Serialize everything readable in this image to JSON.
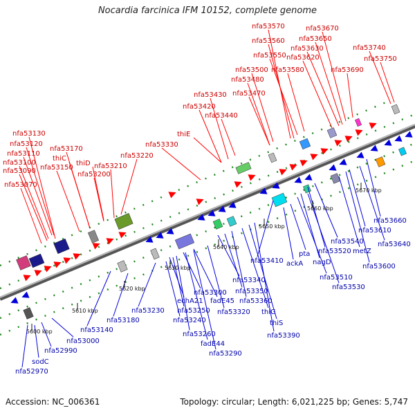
{
  "title": "Nocardia farcinica IFM 10152, complete genome",
  "footer": {
    "accession": "Accession: NC_006361",
    "stats": "Topology: circular; Length: 6,021,225 bp; Genes: 5,747"
  },
  "colors": {
    "forward_strand": "#ff0000",
    "reverse_strand": "#0000dd",
    "backbone": "#888888",
    "tick_dot": "#228b22"
  },
  "scale_ticks": [
    "5600 kbp",
    "5610 kbp",
    "5620 kbp",
    "5630 kbp",
    "5640 kbp",
    "5650 kbp",
    "5660 kbp",
    "5670 kbp"
  ],
  "top_labels": [
    "nfa53570",
    "nfa53560",
    "nfa53550",
    "nfa53500",
    "nfa53480",
    "nfa53470",
    "nfa53430",
    "nfa53420",
    "nfa53440",
    "nfa53670",
    "nfa53650",
    "nfa53630",
    "nfa53620",
    "nfa53580",
    "nfa53690",
    "nfa53740",
    "nfa53750",
    "nfa53130",
    "nfa53120",
    "nfa53110",
    "nfa53100",
    "nfa53090",
    "nfa53070",
    "nfa53170",
    "thiC",
    "nfa53150",
    "thiD",
    "nfa53200",
    "nfa53210",
    "nfa53220",
    "nfa53330",
    "thiE"
  ],
  "bottom_labels": [
    "nfa52970",
    "sodC",
    "nfa52990",
    "nfa53000",
    "nfa53140",
    "nfa53180",
    "nfa53230",
    "echA21",
    "nfa53250",
    "nfa53240",
    "nfa53260",
    "fadE44",
    "nfa53290",
    "nfa53300",
    "fadE45",
    "nfa53320",
    "nfa53340",
    "nfa53350",
    "nfa53360",
    "thiG",
    "thiS",
    "nfa53390",
    "nfa53410",
    "ackA",
    "pta",
    "nagD",
    "nfa53520",
    "nfa53540",
    "nfa53510",
    "nfa53530",
    "metZ",
    "nfa53600",
    "nfa53640",
    "nfa53610",
    "nfa53660"
  ]
}
